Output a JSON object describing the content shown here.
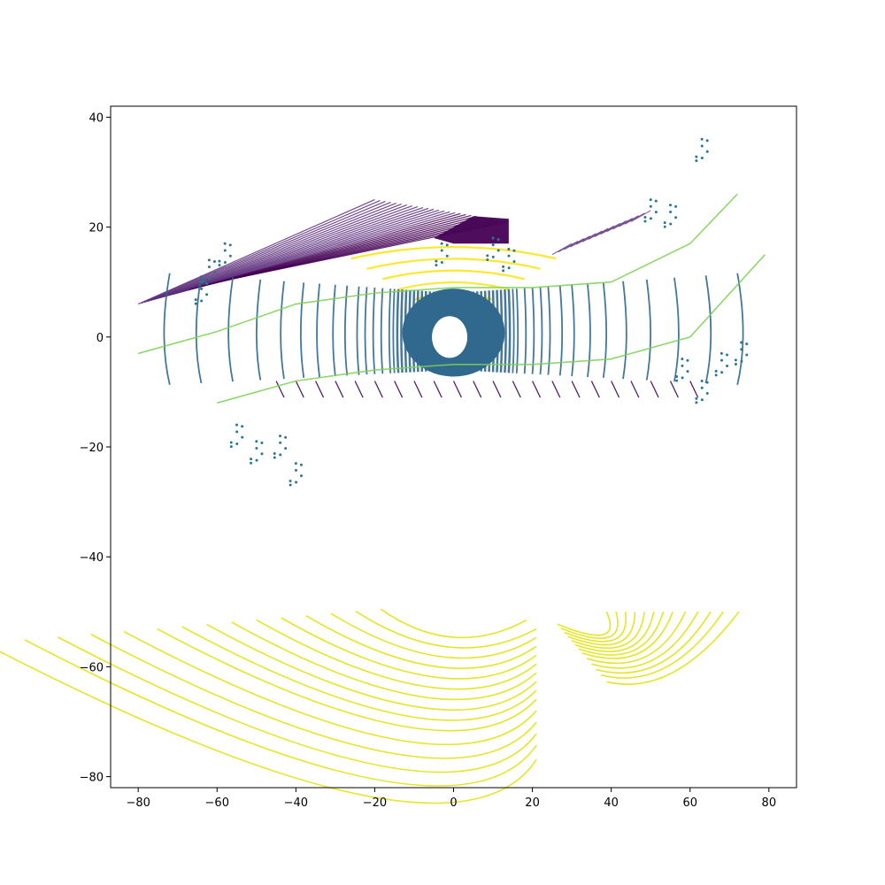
{
  "chart_data": {
    "type": "scatter",
    "title": "",
    "xlabel": "",
    "ylabel": "",
    "xlim": [
      -87,
      87
    ],
    "ylim": [
      -82,
      42
    ],
    "x_ticks": [
      -80,
      -60,
      -40,
      -20,
      0,
      20,
      40,
      60,
      80
    ],
    "y_ticks": [
      -80,
      -60,
      -40,
      -20,
      0,
      20,
      40
    ],
    "x_tick_labels": [
      "−80",
      "−60",
      "−40",
      "−20",
      "0",
      "20",
      "40",
      "60",
      "80"
    ],
    "y_tick_labels": [
      "−80",
      "−60",
      "−40",
      "−20",
      "0",
      "20",
      "40"
    ],
    "grid": false,
    "legend": "none",
    "colormap": "viridis",
    "colors": {
      "ground": "#31688e",
      "road_edge": "#7ad151",
      "vegetation": "#2a788e",
      "building": "#440154",
      "building_light": "#5b2b7a",
      "structure": "#fde725",
      "far_rings": "#e5e419"
    },
    "series": [
      {
        "category": "ground",
        "description": "concentric lidar ring arcs around origin",
        "rings_center": [
          0,
          0
        ],
        "ring_radii_x": [
          3,
          4,
          5,
          6,
          7,
          8,
          9,
          10,
          11,
          12,
          13,
          14,
          15,
          16,
          18,
          20,
          22,
          24,
          27,
          30,
          34,
          38,
          43,
          49,
          56,
          64,
          72
        ],
        "ring_half_height_ratio": 0.22,
        "central_hole": [
          0,
          0,
          4.5
        ]
      },
      {
        "category": "road_edge",
        "points_upper": [
          [
            -80,
            -3
          ],
          [
            -60,
            1
          ],
          [
            -40,
            6
          ],
          [
            -20,
            8
          ],
          [
            0,
            9
          ],
          [
            20,
            9
          ],
          [
            40,
            10
          ],
          [
            60,
            17
          ],
          [
            72,
            26
          ]
        ],
        "points_lower": [
          [
            -60,
            -12
          ],
          [
            -40,
            -8
          ],
          [
            -20,
            -6
          ],
          [
            0,
            -5
          ],
          [
            20,
            -5
          ],
          [
            40,
            -4
          ],
          [
            60,
            0
          ],
          [
            79,
            15
          ]
        ]
      },
      {
        "category": "building",
        "description": "dense streaks north of road",
        "region": [
          [
            -80,
            6
          ],
          [
            -35,
            20
          ],
          [
            -20,
            26
          ],
          [
            0,
            22
          ],
          [
            14,
            21
          ],
          [
            14,
            16
          ],
          [
            -5,
            17
          ],
          [
            -40,
            12
          ],
          [
            -80,
            8
          ]
        ]
      },
      {
        "category": "structure",
        "description": "yellow arcs north of center",
        "arcs": [
          [
            0,
            8
          ],
          [
            0,
            10
          ],
          [
            0,
            13
          ],
          [
            0,
            15
          ],
          [
            0,
            17
          ]
        ]
      },
      {
        "category": "far_rings",
        "description": "far arcs in lower half",
        "center": [
          0,
          -45
        ],
        "radii": [
          5,
          8,
          11,
          14,
          17,
          20,
          23,
          26,
          29,
          32,
          36,
          40,
          44,
          48,
          53
        ]
      }
    ]
  }
}
